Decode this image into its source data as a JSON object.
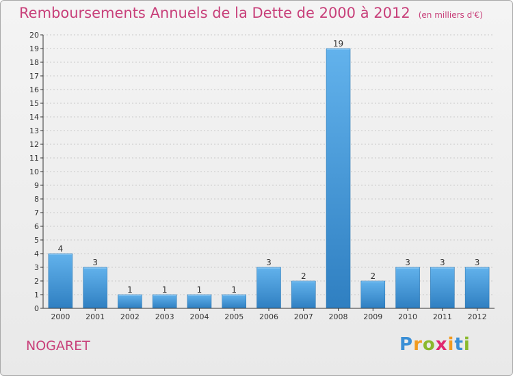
{
  "title": "Remboursements Annuels de la Dette de 2000 à 2012",
  "unit": "(en milliers d'€)",
  "commune": "NOGARET",
  "logo": {
    "text": "Proxiti",
    "letters": [
      "P",
      "r",
      "o",
      "x",
      "i",
      "t",
      "i"
    ],
    "colors": [
      "#3a8fd6",
      "#f29a1e",
      "#8ab92d",
      "#e0286f",
      "#f29a1e",
      "#3a8fd6",
      "#8ab92d"
    ]
  },
  "colors": {
    "title": "#c8407a",
    "bar_light": "#62b2ec",
    "bar_dark": "#2f7fc1",
    "axis": "#333333",
    "grid": "#c9c9c9"
  },
  "chart_data": {
    "type": "bar",
    "categories": [
      "2000",
      "2001",
      "2002",
      "2003",
      "2004",
      "2005",
      "2006",
      "2007",
      "2008",
      "2009",
      "2010",
      "2011",
      "2012"
    ],
    "values": [
      4,
      3,
      1,
      1,
      1,
      1,
      3,
      2,
      19,
      2,
      3,
      3,
      3
    ],
    "data_labels": [
      "4",
      "3",
      "1",
      "1",
      "1",
      "1",
      "3",
      "2",
      "19",
      "2",
      "3",
      "3",
      "3"
    ],
    "ylim": [
      0,
      20
    ],
    "yticks": [
      0,
      1,
      2,
      3,
      4,
      5,
      6,
      7,
      8,
      9,
      10,
      11,
      12,
      13,
      14,
      15,
      16,
      17,
      18,
      19,
      20
    ],
    "grid": "horizontal dashed",
    "legend": "none"
  }
}
